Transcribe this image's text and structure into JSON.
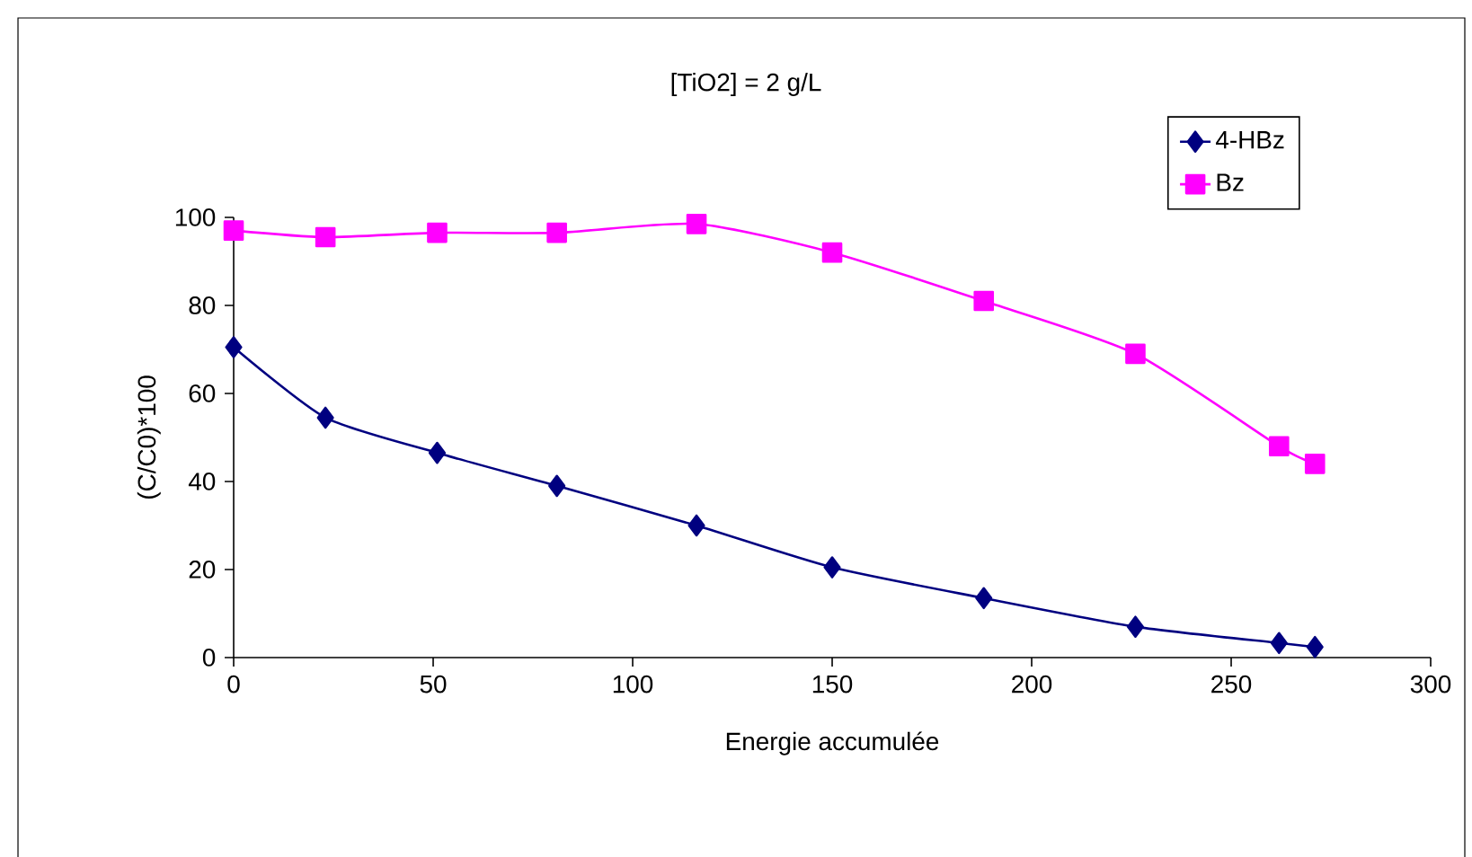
{
  "chart_data": {
    "type": "line",
    "title": "[TiO2] = 2 g/L",
    "xlabel": "Energie accumulée",
    "ylabel": "(C/C0)*100",
    "x": [
      0,
      23,
      51,
      81,
      116,
      150,
      188,
      226,
      262,
      271
    ],
    "series": [
      {
        "name": "4-HBz",
        "color": "#000080",
        "marker": "diamond",
        "values": [
          70.5,
          54.5,
          46.5,
          39,
          30,
          20.5,
          13.5,
          7,
          3.3,
          2.4
        ]
      },
      {
        "name": "Bz",
        "color": "#ff00ff",
        "marker": "square",
        "values": [
          97,
          95.5,
          96.5,
          96.5,
          98.5,
          92,
          81,
          69,
          48,
          44
        ]
      }
    ],
    "xlim": [
      0,
      300
    ],
    "xticks": [
      0,
      50,
      100,
      150,
      200,
      250,
      300
    ],
    "ylim": [
      0,
      100
    ],
    "yticks": [
      0,
      20,
      40,
      60,
      80,
      100
    ],
    "legend": "top right",
    "grid": false
  }
}
